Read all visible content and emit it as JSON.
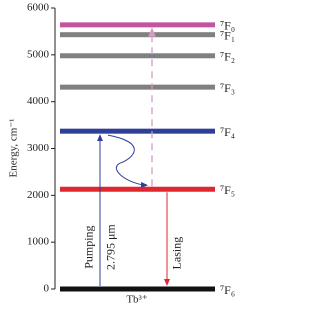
{
  "chart_data": {
    "type": "energy-levels",
    "ylabel": "Energy, cm⁻¹",
    "xlabel": "Tb³⁺",
    "ylim": [
      0,
      6000
    ],
    "yticks": [
      0,
      1000,
      2000,
      3000,
      4000,
      5000,
      6000
    ],
    "levels": [
      {
        "label": "⁷F₀",
        "value": 5640,
        "color": "#c2559f",
        "label_color": "#c2559f"
      },
      {
        "label": "⁷F₁",
        "value": 5430,
        "color": "#808080",
        "label_color": "#222222"
      },
      {
        "label": "⁷F₂",
        "value": 4980,
        "color": "#808080",
        "label_color": "#222222"
      },
      {
        "label": "⁷F₃",
        "value": 4310,
        "color": "#808080",
        "label_color": "#222222"
      },
      {
        "label": "⁷F₄",
        "value": 3370,
        "color": "#2f3f98",
        "label_color": "#2f3f98"
      },
      {
        "label": "⁷F₅",
        "value": 2130,
        "color": "#e0262e",
        "label_color": "#e0262e"
      },
      {
        "label": "⁷F₆",
        "value": 0,
        "color": "#111111",
        "label_color": "#222222"
      }
    ],
    "annotations": {
      "pumping": {
        "text": "Pumping",
        "wavelength": "2.795 μm",
        "color": "#2f3f98"
      },
      "lasing": {
        "text": "Lasing",
        "color": "#e0262e"
      },
      "dashed_color": "#d79ac6"
    }
  }
}
